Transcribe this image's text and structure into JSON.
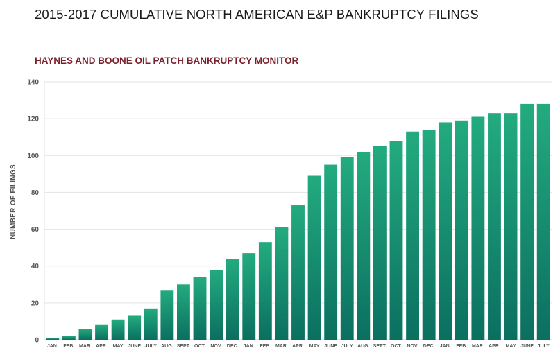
{
  "header": {
    "title": "2015-2017 CUMULATIVE NORTH AMERICAN E&P BANKRUPTCY FILINGS"
  },
  "chart_data": {
    "type": "bar",
    "title": "HAYNES AND BOONE OIL PATCH BANKRUPTCY MONITOR",
    "ylabel": "NUMBER OF FILINGS",
    "xlabel": "",
    "ylim": [
      0,
      140
    ],
    "yticks": [
      0,
      20,
      40,
      60,
      80,
      100,
      120,
      140
    ],
    "grid": true,
    "legend": "none",
    "colors": {
      "bar_top": "#23ab7f",
      "bar_bottom": "#0b6f60",
      "grid": "#e3e3e3",
      "axis": "#c8c8c8"
    },
    "categories": [
      "JAN.",
      "FEB.",
      "MAR.",
      "APR.",
      "MAY",
      "JUNE",
      "JULY",
      "AUG.",
      "SEPT.",
      "OCT.",
      "NOV.",
      "DEC.",
      "JAN.",
      "FEB.",
      "MAR.",
      "APR.",
      "MAY",
      "JUNE",
      "JULY",
      "AUG.",
      "SEPT.",
      "OCT.",
      "NOV.",
      "DEC.",
      "JAN.",
      "FEB.",
      "MAR.",
      "APR.",
      "MAY",
      "JUNE",
      "JULY"
    ],
    "values": [
      1,
      2,
      6,
      8,
      11,
      13,
      17,
      27,
      30,
      34,
      38,
      44,
      47,
      53,
      61,
      73,
      89,
      95,
      99,
      102,
      105,
      108,
      113,
      114,
      118,
      119,
      121,
      123,
      123,
      128,
      128
    ]
  }
}
